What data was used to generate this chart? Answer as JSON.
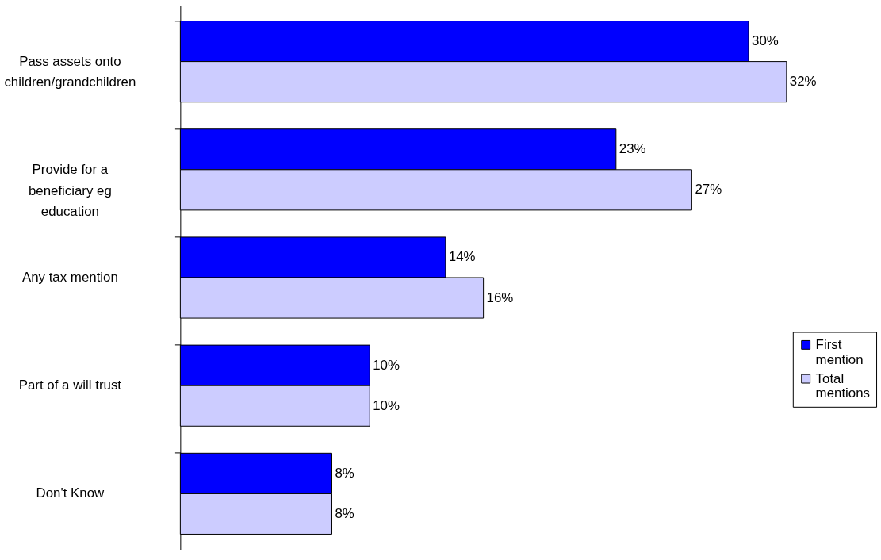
{
  "chart_data": {
    "type": "bar",
    "orientation": "horizontal",
    "categories": [
      "Pass assets onto children/grandchildren",
      "Provide for a beneficiary eg education",
      "Any tax mention",
      "Part of a will trust",
      "Don't Know"
    ],
    "series": [
      {
        "name": "First mention",
        "color": "#0000ff",
        "values": [
          30,
          23,
          14,
          10,
          8
        ],
        "value_labels": [
          "30%",
          "23%",
          "14%",
          "10%",
          "8%"
        ]
      },
      {
        "name": "Total mentions",
        "color": "#ccccff",
        "values": [
          32,
          27,
          16,
          10,
          8
        ],
        "value_labels": [
          "32%",
          "27%",
          "16%",
          "10%",
          "8%"
        ]
      }
    ],
    "legend": "right",
    "grid": false,
    "tick_labels": false
  }
}
